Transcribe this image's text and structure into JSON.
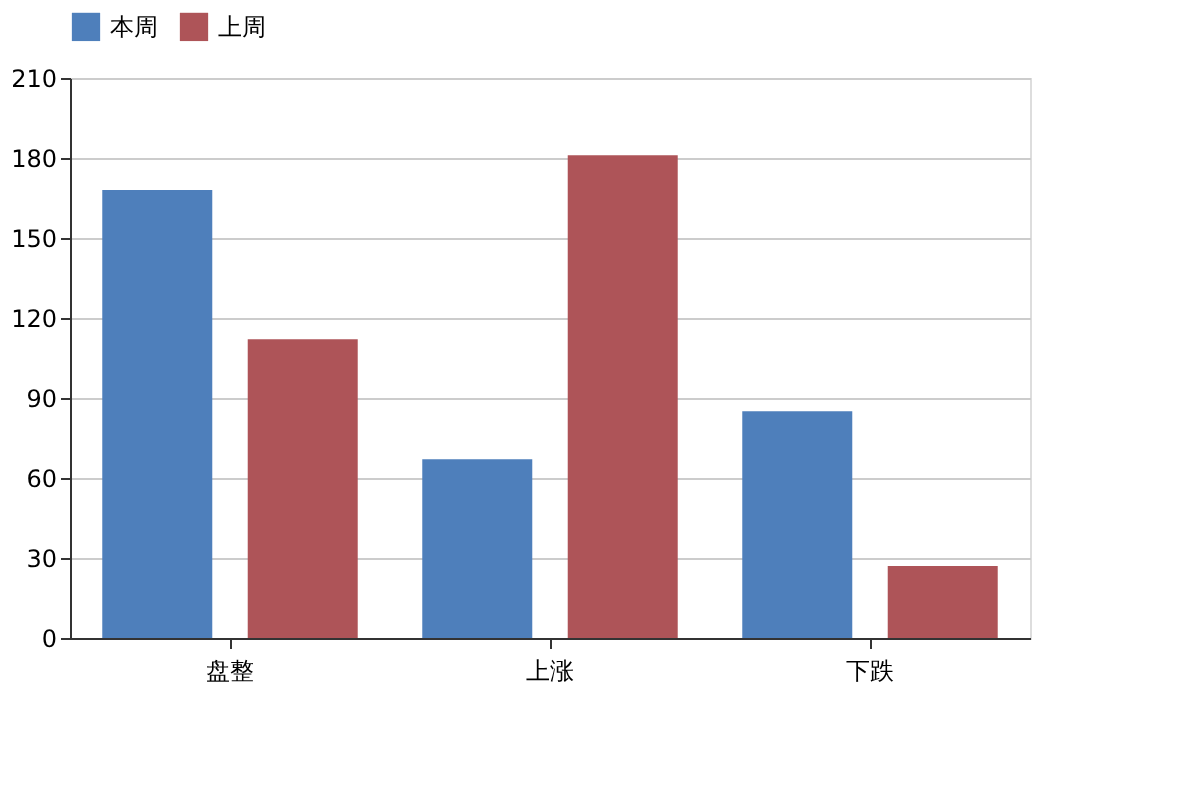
{
  "chart_data": {
    "type": "bar",
    "categories": [
      "盘整",
      "上涨",
      "下跌"
    ],
    "series": [
      {
        "name": "本周",
        "color": "#4e7fbb",
        "values": [
          168,
          67,
          85
        ]
      },
      {
        "name": "上周",
        "color": "#ae5458",
        "values": [
          112,
          181,
          27
        ]
      }
    ],
    "ylim": [
      0,
      210
    ],
    "yticks": [
      0,
      30,
      60,
      90,
      120,
      150,
      180,
      210
    ],
    "grid": "y",
    "legend": "top"
  }
}
